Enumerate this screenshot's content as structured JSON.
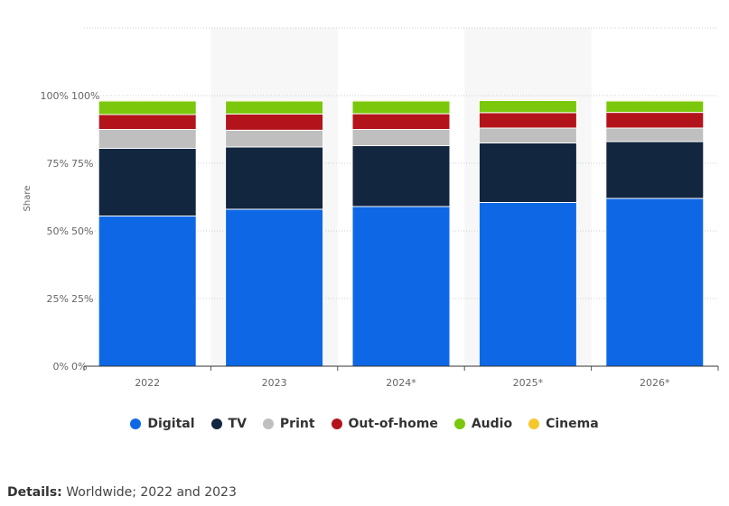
{
  "chart_data": {
    "type": "bar",
    "stacked": true,
    "categories": [
      "2022",
      "2023",
      "2024*",
      "2025*",
      "2026*"
    ],
    "series": [
      {
        "name": "Digital",
        "color": "#0e68e6",
        "values": [
          55.5,
          58.0,
          59.0,
          60.5,
          62.0
        ]
      },
      {
        "name": "TV",
        "color": "#12263f",
        "values": [
          25.0,
          23.0,
          22.5,
          22.0,
          21.0
        ]
      },
      {
        "name": "Print",
        "color": "#bfbfbf",
        "values": [
          7.0,
          6.2,
          6.0,
          5.5,
          5.0
        ]
      },
      {
        "name": "Out-of-home",
        "color": "#b3141b",
        "values": [
          5.5,
          6.0,
          5.8,
          5.7,
          5.8
        ]
      },
      {
        "name": "Audio",
        "color": "#7ac70c",
        "values": [
          5.0,
          4.8,
          4.7,
          4.5,
          4.2
        ]
      },
      {
        "name": "Cinema",
        "color": "#f5c72a",
        "values": [
          0.4,
          0.4,
          0.4,
          0.4,
          0.4
        ]
      }
    ],
    "ylabel": "Share",
    "ylim": [
      0,
      100
    ],
    "yticks": [
      "0%",
      "25%",
      "50%",
      "75%",
      "100%"
    ],
    "grid": true,
    "legend": "bottom-center"
  },
  "details": {
    "label": "Details:",
    "text": "Worldwide; 2022 and 2023"
  }
}
